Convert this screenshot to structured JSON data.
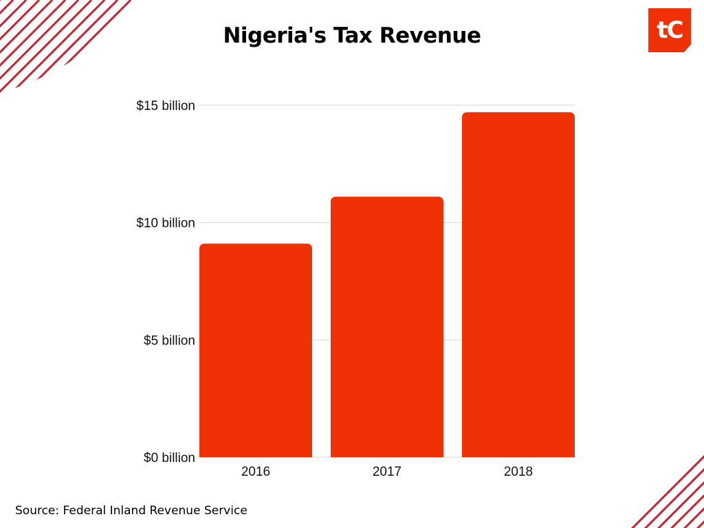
{
  "title": "Nigeria's Tax Revenue",
  "source": "Source: Federal Inland Revenue Service",
  "logo": {
    "text": "tC",
    "color": "#f03005"
  },
  "colors": {
    "bar": "#f03005",
    "stripes": "#c8202f",
    "grid": "#d6d6d6"
  },
  "chart_data": {
    "type": "bar",
    "title": "Nigeria's Tax Revenue",
    "categories": [
      "2016",
      "2017",
      "2018"
    ],
    "values": [
      9.1,
      11.1,
      14.7
    ],
    "ylim": [
      0,
      15
    ],
    "yticks": [
      0,
      5,
      10,
      15
    ],
    "ytick_labels": [
      "$0 billion",
      "$5 billion",
      "$10 billion",
      "$15 billion"
    ],
    "xlabel": "",
    "ylabel": "",
    "unit": "billion USD",
    "grid": true
  }
}
